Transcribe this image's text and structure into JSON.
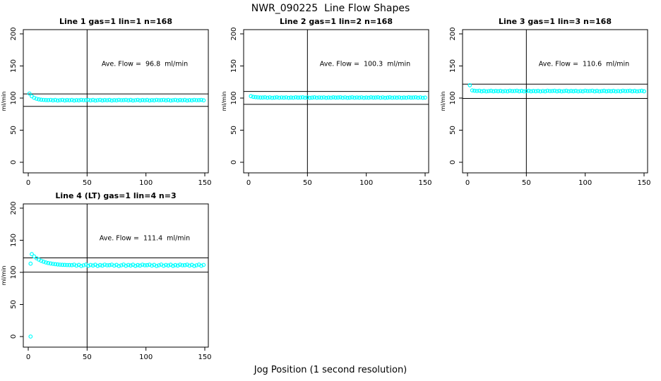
{
  "title": "NWR_090225  Line Flow Shapes",
  "x_axis_caption": "Jog Position (1 second resolution)",
  "colors": {
    "points": "#00ffff",
    "axis": "#000000",
    "background": "#ffffff"
  },
  "chart_data": [
    {
      "type": "scatter",
      "title": "Line 1 gas=1 lin=1 n=168",
      "annotation": "Ave. Flow =  96.8  ml/min",
      "ave_flow": 96.8,
      "ylabel": "ml/min",
      "xticks": [
        0,
        50,
        100,
        150
      ],
      "yticks": [
        0,
        50,
        100,
        150,
        200
      ],
      "xlim": [
        -4.2,
        153
      ],
      "ylim": [
        -16.5,
        206.6
      ],
      "vline_x": 50,
      "hlines": [
        106.5,
        87.1
      ],
      "annotation_pos": [
        99,
        150
      ],
      "grid": false,
      "points": [
        [
          1,
          107.0
        ],
        [
          3,
          102.9
        ],
        [
          5,
          100.4
        ],
        [
          7,
          98.9
        ],
        [
          9,
          98.0
        ],
        [
          11,
          97.5
        ],
        [
          13,
          97.1
        ],
        [
          15,
          96.9
        ],
        [
          17,
          96.8
        ],
        [
          19,
          97.1
        ],
        [
          21,
          96.5
        ],
        [
          23,
          97.0
        ],
        [
          25,
          96.3
        ],
        [
          27,
          96.7
        ],
        [
          29,
          97.1
        ],
        [
          31,
          96.4
        ],
        [
          33,
          96.9
        ],
        [
          35,
          96.6
        ],
        [
          37,
          97.0
        ],
        [
          39,
          96.3
        ],
        [
          41,
          96.8
        ],
        [
          43,
          96.5
        ],
        [
          45,
          97.1
        ],
        [
          47,
          96.7
        ],
        [
          49,
          96.8
        ],
        [
          51,
          97.1
        ],
        [
          53,
          96.5
        ],
        [
          55,
          97.0
        ],
        [
          57,
          96.3
        ],
        [
          59,
          96.7
        ],
        [
          61,
          97.1
        ],
        [
          63,
          96.4
        ],
        [
          65,
          96.9
        ],
        [
          67,
          96.6
        ],
        [
          69,
          97.0
        ],
        [
          71,
          96.3
        ],
        [
          73,
          96.8
        ],
        [
          75,
          96.5
        ],
        [
          77,
          97.1
        ],
        [
          79,
          96.7
        ],
        [
          81,
          96.8
        ],
        [
          83,
          97.1
        ],
        [
          85,
          96.5
        ],
        [
          87,
          97.0
        ],
        [
          89,
          96.3
        ],
        [
          91,
          96.7
        ],
        [
          93,
          97.1
        ],
        [
          95,
          96.4
        ],
        [
          97,
          96.9
        ],
        [
          99,
          96.6
        ],
        [
          101,
          97.0
        ],
        [
          103,
          96.3
        ],
        [
          105,
          96.8
        ],
        [
          107,
          96.5
        ],
        [
          109,
          97.1
        ],
        [
          111,
          96.7
        ],
        [
          113,
          96.8
        ],
        [
          115,
          97.1
        ],
        [
          117,
          96.5
        ],
        [
          119,
          97.0
        ],
        [
          121,
          96.3
        ],
        [
          123,
          96.7
        ],
        [
          125,
          97.1
        ],
        [
          127,
          96.4
        ],
        [
          129,
          96.9
        ],
        [
          131,
          96.6
        ],
        [
          133,
          97.0
        ],
        [
          135,
          96.3
        ],
        [
          137,
          96.8
        ],
        [
          139,
          96.5
        ],
        [
          141,
          97.1
        ],
        [
          143,
          96.7
        ],
        [
          145,
          96.8
        ],
        [
          147,
          97.1
        ],
        [
          149,
          96.5
        ]
      ]
    },
    {
      "type": "scatter",
      "title": "Line 2 gas=1 lin=2 n=168",
      "annotation": "Ave. Flow =  100.3  ml/min",
      "ave_flow": 100.3,
      "ylabel": "ml/min",
      "xticks": [
        0,
        50,
        100,
        150
      ],
      "yticks": [
        0,
        50,
        100,
        150,
        200
      ],
      "xlim": [
        -4.2,
        153
      ],
      "ylim": [
        -16.5,
        206.6
      ],
      "vline_x": 50,
      "hlines": [
        110.3,
        90.3
      ],
      "annotation_pos": [
        99,
        150
      ],
      "grid": false,
      "points": [
        [
          2,
          103.0
        ],
        [
          4,
          101.9
        ],
        [
          6,
          101.4
        ],
        [
          8,
          101.1
        ],
        [
          10,
          100.9
        ],
        [
          12,
          100.9
        ],
        [
          14,
          101.2
        ],
        [
          16,
          100.6
        ],
        [
          18,
          101.1
        ],
        [
          20,
          100.4
        ],
        [
          22,
          100.8
        ],
        [
          24,
          101.2
        ],
        [
          26,
          100.5
        ],
        [
          28,
          101.0
        ],
        [
          30,
          100.7
        ],
        [
          32,
          101.1
        ],
        [
          34,
          100.4
        ],
        [
          36,
          100.9
        ],
        [
          38,
          100.6
        ],
        [
          40,
          101.2
        ],
        [
          42,
          100.8
        ],
        [
          44,
          100.9
        ],
        [
          46,
          101.2
        ],
        [
          48,
          100.6
        ],
        [
          50,
          101.1
        ],
        [
          52,
          100.4
        ],
        [
          54,
          100.8
        ],
        [
          56,
          101.2
        ],
        [
          58,
          100.5
        ],
        [
          60,
          101.0
        ],
        [
          62,
          100.7
        ],
        [
          64,
          101.1
        ],
        [
          66,
          100.4
        ],
        [
          68,
          100.9
        ],
        [
          70,
          100.6
        ],
        [
          72,
          101.2
        ],
        [
          74,
          100.8
        ],
        [
          76,
          100.9
        ],
        [
          78,
          101.2
        ],
        [
          80,
          100.6
        ],
        [
          82,
          101.1
        ],
        [
          84,
          100.4
        ],
        [
          86,
          100.8
        ],
        [
          88,
          101.2
        ],
        [
          90,
          100.5
        ],
        [
          92,
          101.0
        ],
        [
          94,
          100.7
        ],
        [
          96,
          101.1
        ],
        [
          98,
          100.4
        ],
        [
          100,
          100.9
        ],
        [
          102,
          100.6
        ],
        [
          104,
          101.2
        ],
        [
          106,
          100.8
        ],
        [
          108,
          100.9
        ],
        [
          110,
          101.2
        ],
        [
          112,
          100.6
        ],
        [
          114,
          101.1
        ],
        [
          116,
          100.4
        ],
        [
          118,
          100.8
        ],
        [
          120,
          101.2
        ],
        [
          122,
          100.5
        ],
        [
          124,
          101.0
        ],
        [
          126,
          100.7
        ],
        [
          128,
          101.1
        ],
        [
          130,
          100.4
        ],
        [
          132,
          100.9
        ],
        [
          134,
          100.6
        ],
        [
          136,
          101.2
        ],
        [
          138,
          100.8
        ],
        [
          140,
          100.9
        ],
        [
          142,
          101.2
        ],
        [
          144,
          100.6
        ],
        [
          146,
          101.1
        ],
        [
          148,
          100.4
        ],
        [
          150,
          100.8
        ]
      ]
    },
    {
      "type": "scatter",
      "title": "Line 3 gas=1 lin=3 n=168",
      "annotation": "Ave. Flow =  110.6  ml/min",
      "ave_flow": 110.6,
      "ylabel": "ml/min",
      "xticks": [
        0,
        50,
        100,
        150
      ],
      "yticks": [
        0,
        50,
        100,
        150,
        200
      ],
      "xlim": [
        -4.2,
        153
      ],
      "ylim": [
        -16.5,
        206.6
      ],
      "vline_x": 50,
      "hlines": [
        121.7,
        99.5
      ],
      "annotation_pos": [
        99,
        150
      ],
      "grid": false,
      "points": [
        [
          2,
          120.0
        ],
        [
          4,
          112.0
        ],
        [
          6,
          111.4
        ],
        [
          8,
          111.0
        ],
        [
          10,
          111.4
        ],
        [
          12,
          110.6
        ],
        [
          14,
          111.2
        ],
        [
          16,
          110.4
        ],
        [
          18,
          110.9
        ],
        [
          20,
          111.3
        ],
        [
          22,
          110.5
        ],
        [
          24,
          111.1
        ],
        [
          26,
          110.7
        ],
        [
          28,
          111.2
        ],
        [
          30,
          110.4
        ],
        [
          32,
          111.0
        ],
        [
          34,
          110.6
        ],
        [
          36,
          111.4
        ],
        [
          38,
          110.9
        ],
        [
          40,
          111.0
        ],
        [
          42,
          111.4
        ],
        [
          44,
          110.6
        ],
        [
          46,
          111.2
        ],
        [
          48,
          110.4
        ],
        [
          50,
          110.9
        ],
        [
          52,
          111.3
        ],
        [
          54,
          110.5
        ],
        [
          56,
          111.1
        ],
        [
          58,
          110.7
        ],
        [
          60,
          111.2
        ],
        [
          62,
          110.4
        ],
        [
          64,
          111.0
        ],
        [
          66,
          110.6
        ],
        [
          68,
          111.4
        ],
        [
          70,
          110.9
        ],
        [
          72,
          111.0
        ],
        [
          74,
          111.4
        ],
        [
          76,
          110.6
        ],
        [
          78,
          111.2
        ],
        [
          80,
          110.4
        ],
        [
          82,
          110.9
        ],
        [
          84,
          111.3
        ],
        [
          86,
          110.5
        ],
        [
          88,
          111.1
        ],
        [
          90,
          110.7
        ],
        [
          92,
          111.2
        ],
        [
          94,
          110.4
        ],
        [
          96,
          111.0
        ],
        [
          98,
          110.6
        ],
        [
          100,
          111.4
        ],
        [
          102,
          110.9
        ],
        [
          104,
          111.0
        ],
        [
          106,
          111.4
        ],
        [
          108,
          110.6
        ],
        [
          110,
          111.2
        ],
        [
          112,
          110.4
        ],
        [
          114,
          110.9
        ],
        [
          116,
          111.3
        ],
        [
          118,
          110.5
        ],
        [
          120,
          111.1
        ],
        [
          122,
          110.7
        ],
        [
          124,
          111.2
        ],
        [
          126,
          110.4
        ],
        [
          128,
          111.0
        ],
        [
          130,
          110.6
        ],
        [
          132,
          111.4
        ],
        [
          134,
          110.9
        ],
        [
          136,
          111.0
        ],
        [
          138,
          111.4
        ],
        [
          140,
          110.6
        ],
        [
          142,
          111.2
        ],
        [
          144,
          110.4
        ],
        [
          146,
          110.9
        ],
        [
          148,
          111.3
        ],
        [
          150,
          110.5
        ]
      ]
    },
    {
      "type": "scatter",
      "title": "Line 4 (LT) gas=1 lin=4 n=3",
      "annotation": "Ave. Flow =  111.4  ml/min",
      "ave_flow": 111.4,
      "ylabel": "ml/min",
      "xticks": [
        0,
        50,
        100,
        150
      ],
      "yticks": [
        0,
        50,
        100,
        150,
        200
      ],
      "xlim": [
        -4.2,
        153
      ],
      "ylim": [
        -16.5,
        206.6
      ],
      "vline_x": 50,
      "hlines": [
        122.5,
        100.3
      ],
      "annotation_pos": [
        99,
        150
      ],
      "grid": false,
      "points": [
        [
          2,
          0.0
        ],
        [
          2,
          113.5
        ],
        [
          3,
          128.3
        ],
        [
          5,
          124.8
        ],
        [
          7,
          122.0
        ],
        [
          9,
          119.8
        ],
        [
          11,
          118.0
        ],
        [
          13,
          116.6
        ],
        [
          15,
          115.4
        ],
        [
          17,
          114.5
        ],
        [
          19,
          113.8
        ],
        [
          21,
          113.2
        ],
        [
          23,
          112.7
        ],
        [
          25,
          112.3
        ],
        [
          27,
          112.0
        ],
        [
          29,
          111.8
        ],
        [
          31,
          111.6
        ],
        [
          33,
          111.4
        ],
        [
          35,
          111.3
        ],
        [
          37,
          111.2
        ],
        [
          39,
          112.0
        ],
        [
          41,
          110.4
        ],
        [
          43,
          111.7
        ],
        [
          45,
          109.9
        ],
        [
          47,
          111.0
        ],
        [
          49,
          112.1
        ],
        [
          51,
          110.2
        ],
        [
          53,
          111.5
        ],
        [
          55,
          110.7
        ],
        [
          57,
          111.9
        ],
        [
          59,
          110.1
        ],
        [
          61,
          111.3
        ],
        [
          63,
          110.5
        ],
        [
          65,
          112.0
        ],
        [
          67,
          111.0
        ],
        [
          69,
          111.2
        ],
        [
          71,
          112.0
        ],
        [
          73,
          110.4
        ],
        [
          75,
          111.7
        ],
        [
          77,
          109.9
        ],
        [
          79,
          111.0
        ],
        [
          81,
          112.1
        ],
        [
          83,
          110.2
        ],
        [
          85,
          111.5
        ],
        [
          87,
          110.7
        ],
        [
          89,
          111.9
        ],
        [
          91,
          110.1
        ],
        [
          93,
          111.3
        ],
        [
          95,
          110.5
        ],
        [
          97,
          112.0
        ],
        [
          99,
          111.0
        ],
        [
          101,
          111.2
        ],
        [
          103,
          112.0
        ],
        [
          105,
          110.4
        ],
        [
          107,
          111.7
        ],
        [
          109,
          109.9
        ],
        [
          111,
          111.0
        ],
        [
          113,
          112.1
        ],
        [
          115,
          110.2
        ],
        [
          117,
          111.5
        ],
        [
          119,
          110.7
        ],
        [
          121,
          111.9
        ],
        [
          123,
          110.1
        ],
        [
          125,
          111.3
        ],
        [
          127,
          110.5
        ],
        [
          129,
          112.0
        ],
        [
          131,
          111.0
        ],
        [
          133,
          111.2
        ],
        [
          135,
          112.0
        ],
        [
          137,
          110.4
        ],
        [
          139,
          111.7
        ],
        [
          141,
          109.9
        ],
        [
          143,
          111.0
        ],
        [
          145,
          112.1
        ],
        [
          147,
          110.2
        ],
        [
          149,
          111.5
        ]
      ]
    }
  ]
}
